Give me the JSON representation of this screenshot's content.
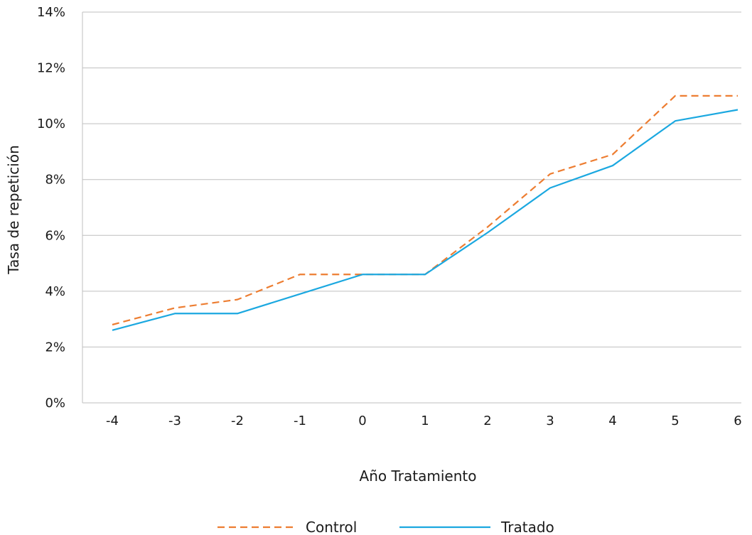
{
  "chart_data": {
    "type": "line",
    "title": "",
    "xlabel": "Año Tratamiento",
    "ylabel": "Tasa de repetición",
    "x": [
      -4,
      -3,
      -2,
      -1,
      0,
      1,
      2,
      3,
      4,
      5,
      6
    ],
    "x_tick_labels": [
      "-4",
      "-3",
      "-2",
      "-1",
      "0",
      "1",
      "2",
      "3",
      "4",
      "5",
      "6"
    ],
    "y_tick_labels": [
      "0%",
      "2%",
      "4%",
      "6%",
      "8%",
      "10%",
      "12%",
      "14%"
    ],
    "y_ticks": [
      0,
      2,
      4,
      6,
      8,
      10,
      12,
      14
    ],
    "ylim": [
      0,
      14
    ],
    "grid": "horizontal",
    "legend_position": "bottom",
    "series": [
      {
        "name": "Control",
        "color": "#ED7D31",
        "style": "dashed",
        "values": [
          2.8,
          3.4,
          3.7,
          4.6,
          4.6,
          4.6,
          6.3,
          8.2,
          8.9,
          11.0,
          11.0
        ]
      },
      {
        "name": "Tratado",
        "color": "#1BA8E0",
        "style": "solid",
        "values": [
          2.6,
          3.2,
          3.2,
          3.9,
          4.6,
          4.6,
          6.1,
          7.7,
          8.5,
          10.1,
          10.5
        ]
      }
    ]
  }
}
